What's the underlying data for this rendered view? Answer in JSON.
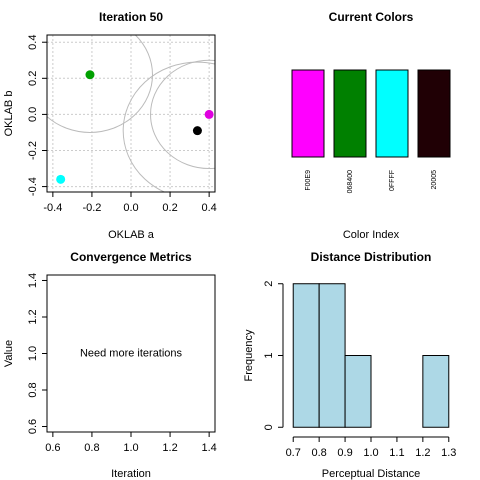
{
  "chart_data": [
    {
      "type": "scatter",
      "title": "Iteration 50",
      "xlabel": "OKLAB a",
      "ylabel": "OKLAB b",
      "x": [
        -0.21,
        0.4,
        0.34,
        -0.36
      ],
      "values": [
        0.22,
        0.0,
        -0.09,
        -0.36
      ],
      "colors": [
        "#00a000",
        "#e000e0",
        "#000000",
        "#00ffff"
      ],
      "circles": [
        {
          "cx": -0.21,
          "cy": 0.22,
          "r": 0.32
        },
        {
          "cx": 0.4,
          "cy": 0.0,
          "r": 0.3
        },
        {
          "cx": 0.34,
          "cy": -0.09,
          "r": 0.38
        }
      ],
      "xlim": [
        -0.43,
        0.43
      ],
      "ylim": [
        -0.43,
        0.44
      ],
      "xticks": [
        -0.4,
        -0.2,
        {
          "value": 0,
          "label": "0.0"
        },
        0.2,
        0.4
      ],
      "yticks": [
        -0.4,
        -0.2,
        {
          "value": 0,
          "label": "0.0"
        },
        0.2,
        0.4
      ],
      "grid": true
    },
    {
      "type": "bar",
      "title": "Current Colors",
      "xlabel": "Color Index",
      "categories": [
        "F00E9",
        "068400",
        "0FFFF",
        "20005"
      ],
      "values": [
        1,
        1,
        1,
        1
      ],
      "colors": [
        "#ff00ff",
        "#008000",
        "#00ffff",
        "#200005"
      ],
      "ylim": [
        0,
        1
      ]
    },
    {
      "type": "empty",
      "title": "Convergence Metrics",
      "xlabel": "Iteration",
      "ylabel": "Value",
      "annotation": "Need more iterations",
      "xlim": [
        0.57,
        1.43
      ],
      "ylim": [
        0.57,
        1.43
      ],
      "xticks": [
        0.6,
        0.8,
        {
          "value": 1,
          "label": "1.0"
        },
        1.2,
        1.4
      ],
      "yticks": [
        0.6,
        0.8,
        {
          "value": 1,
          "label": "1.0"
        },
        1.2,
        1.4
      ]
    },
    {
      "type": "histogram",
      "title": "Distance Distribution",
      "xlabel": "Perceptual Distance",
      "ylabel": "Frequency",
      "bins": [
        0.7,
        0.8,
        0.9,
        1.0,
        1.1,
        1.2,
        1.3
      ],
      "values": [
        2,
        2,
        1,
        0,
        0,
        1
      ],
      "color": "#add8e6",
      "xlim": [
        0.676,
        1.324
      ],
      "ylim": [
        -0.08,
        2.08
      ],
      "xticks": [
        0.7,
        0.8,
        0.9,
        {
          "value": 1,
          "label": "1.0"
        },
        1.1,
        1.2,
        1.3
      ],
      "yticks": [
        0,
        1,
        2
      ]
    }
  ]
}
